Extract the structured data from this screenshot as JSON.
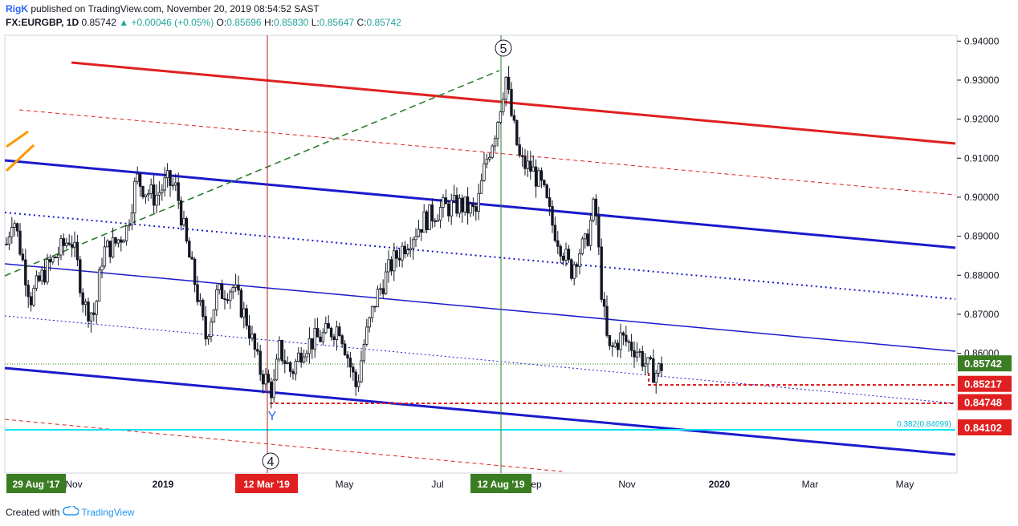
{
  "header": {
    "author": "RigK",
    "published": "published on TradingView.com, November 20, 2019 08:54:52 SAST",
    "symbol": "FX:EURGBP, 1D",
    "last": "0.85742",
    "change": "+0.00046 (+0.05%)",
    "o_label": "O:",
    "o": "0.85696",
    "h_label": "H:",
    "h": "0.85830",
    "l_label": "L:",
    "l": "0.85647",
    "c_label": "C:",
    "c": "0.85742"
  },
  "footer": {
    "created_with": "Created with",
    "brand": "TradingView"
  },
  "colors": {
    "up_candle": "#131722",
    "channel_red": "#e02020",
    "channel_blue": "#1a1acc",
    "green_dash": "#2e7d32",
    "fib_line": "#00e5ee",
    "last_price_bg": "#3b7d23",
    "marker_red": "#e02020",
    "vline_red": "#b71c1c",
    "vline_green": "#2e7d32"
  },
  "chart_data": {
    "type": "candlestick",
    "symbol": "FX:EURGBP",
    "interval": "1D",
    "x_labels": [
      "Nov",
      "2019",
      "May",
      "Jul",
      "Sep",
      "Nov",
      "2020",
      "Mar",
      "May"
    ],
    "y_ticks": [
      0.94,
      0.93,
      0.92,
      0.91,
      0.9,
      0.89,
      0.88,
      0.87,
      0.86
    ],
    "y_tick_labels": [
      "0.94000",
      "0.93000",
      "0.92000",
      "0.91000",
      "0.90000",
      "0.89000",
      "0.88000",
      "0.87000",
      "0.86000"
    ],
    "ylim": [
      0.8293,
      0.9415
    ],
    "close_path": [
      {
        "t": 0,
        "v": 0.888
      },
      {
        "t": 8,
        "v": 0.896
      },
      {
        "t": 22,
        "v": 0.882
      },
      {
        "t": 30,
        "v": 0.874
      },
      {
        "t": 45,
        "v": 0.88
      },
      {
        "t": 62,
        "v": 0.885
      },
      {
        "t": 80,
        "v": 0.89
      },
      {
        "t": 88,
        "v": 0.883
      },
      {
        "t": 97,
        "v": 0.872
      },
      {
        "t": 110,
        "v": 0.87
      },
      {
        "t": 120,
        "v": 0.886
      },
      {
        "t": 135,
        "v": 0.888
      },
      {
        "t": 150,
        "v": 0.892
      },
      {
        "t": 162,
        "v": 0.905
      },
      {
        "t": 172,
        "v": 0.902
      },
      {
        "t": 185,
        "v": 0.9
      },
      {
        "t": 200,
        "v": 0.904
      },
      {
        "t": 212,
        "v": 0.902
      },
      {
        "t": 225,
        "v": 0.887
      },
      {
        "t": 236,
        "v": 0.877
      },
      {
        "t": 248,
        "v": 0.864
      },
      {
        "t": 262,
        "v": 0.875
      },
      {
        "t": 282,
        "v": 0.877
      },
      {
        "t": 300,
        "v": 0.868
      },
      {
        "t": 315,
        "v": 0.856
      },
      {
        "t": 332,
        "v": 0.85
      },
      {
        "t": 340,
        "v": 0.861
      },
      {
        "t": 355,
        "v": 0.855
      },
      {
        "t": 370,
        "v": 0.862
      },
      {
        "t": 390,
        "v": 0.864
      },
      {
        "t": 415,
        "v": 0.867
      },
      {
        "t": 428,
        "v": 0.857
      },
      {
        "t": 436,
        "v": 0.851
      },
      {
        "t": 445,
        "v": 0.862
      },
      {
        "t": 460,
        "v": 0.874
      },
      {
        "t": 480,
        "v": 0.883
      },
      {
        "t": 500,
        "v": 0.889
      },
      {
        "t": 520,
        "v": 0.894
      },
      {
        "t": 540,
        "v": 0.897
      },
      {
        "t": 565,
        "v": 0.898
      },
      {
        "t": 585,
        "v": 0.896
      },
      {
        "t": 597,
        "v": 0.909
      },
      {
        "t": 610,
        "v": 0.918
      },
      {
        "t": 622,
        "v": 0.931
      },
      {
        "t": 628,
        "v": 0.922
      },
      {
        "t": 640,
        "v": 0.909
      },
      {
        "t": 655,
        "v": 0.907
      },
      {
        "t": 668,
        "v": 0.902
      },
      {
        "t": 680,
        "v": 0.893
      },
      {
        "t": 692,
        "v": 0.887
      },
      {
        "t": 703,
        "v": 0.881
      },
      {
        "t": 712,
        "v": 0.886
      },
      {
        "t": 722,
        "v": 0.888
      },
      {
        "t": 733,
        "v": 0.899
      },
      {
        "t": 742,
        "v": 0.874
      },
      {
        "t": 750,
        "v": 0.86
      },
      {
        "t": 765,
        "v": 0.864
      },
      {
        "t": 785,
        "v": 0.861
      },
      {
        "t": 800,
        "v": 0.856
      },
      {
        "t": 810,
        "v": 0.855
      },
      {
        "t": 818,
        "v": 0.8574
      }
    ],
    "price_labels": [
      {
        "label": "0.85742",
        "value": 0.85742,
        "kind": "last"
      },
      {
        "label": "0.85217",
        "value": 0.85217,
        "kind": "level"
      },
      {
        "label": "0.84748",
        "value": 0.84748,
        "kind": "level"
      },
      {
        "label": "0.84102",
        "value": 0.84102,
        "kind": "level"
      }
    ],
    "fib_label": "0.382(0.84099)",
    "fib_value": 0.84099,
    "time_labels": [
      {
        "label": "29 Aug '17",
        "kind": "green"
      },
      {
        "label": "12 Mar '19",
        "kind": "red"
      },
      {
        "label": "12 Aug '19",
        "kind": "green"
      }
    ],
    "wave_labels": [
      {
        "label": "5",
        "circled": true
      },
      {
        "label": "4",
        "circled": true
      },
      {
        "label": "Y",
        "circled": false
      }
    ],
    "grid": false
  }
}
